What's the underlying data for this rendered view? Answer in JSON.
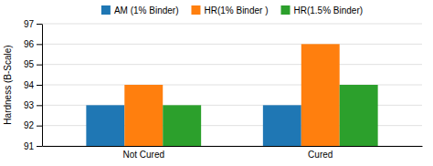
{
  "chart_data": {
    "type": "bar",
    "categories": [
      "Not Cured",
      "Cured"
    ],
    "series": [
      {
        "name": "AM (1% Binder)",
        "values": [
          93,
          93
        ]
      },
      {
        "name": "HR(1% Binder )",
        "values": [
          94,
          96
        ]
      },
      {
        "name": "HR(1.5% Binder)",
        "values": [
          93,
          94
        ]
      }
    ],
    "ylabel": "Hardness (B-Scale)",
    "ylim": [
      91,
      97
    ],
    "yticks": [
      91,
      92,
      93,
      94,
      95,
      96,
      97
    ],
    "grid": true,
    "legend": "top"
  }
}
